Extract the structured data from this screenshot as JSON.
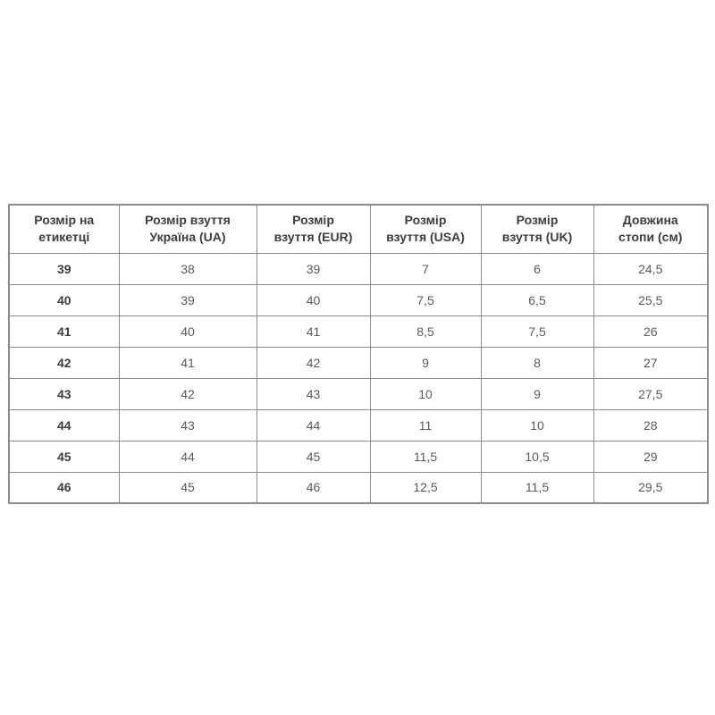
{
  "colors": {
    "background": "#ffffff",
    "table_border": "#8c8c8c",
    "header_text": "#3d3d3d",
    "cell_text": "#5a5a5a"
  },
  "table": {
    "headers": [
      {
        "line1": "Розмір на",
        "line2": "етикетці"
      },
      {
        "line1": "Розмір взуття",
        "line2": "Україна (UA)"
      },
      {
        "line1": "Розмір",
        "line2": "взуття (EUR)"
      },
      {
        "line1": "Розмір",
        "line2": "взуття (USA)"
      },
      {
        "line1": "Розмір",
        "line2": "взуття (UK)"
      },
      {
        "line1": "Довжина",
        "line2": "стопи (см)"
      }
    ],
    "rows": [
      [
        "39",
        "38",
        "39",
        "7",
        "6",
        "24,5"
      ],
      [
        "40",
        "39",
        "40",
        "7,5",
        "6,5",
        "25,5"
      ],
      [
        "41",
        "40",
        "41",
        "8,5",
        "7,5",
        "26"
      ],
      [
        "42",
        "41",
        "42",
        "9",
        "8",
        "27"
      ],
      [
        "43",
        "42",
        "43",
        "10",
        "9",
        "27,5"
      ],
      [
        "44",
        "43",
        "44",
        "11",
        "10",
        "28"
      ],
      [
        "45",
        "44",
        "45",
        "11,5",
        "10,5",
        "29"
      ],
      [
        "46",
        "45",
        "46",
        "12,5",
        "11,5",
        "29,5"
      ]
    ]
  }
}
